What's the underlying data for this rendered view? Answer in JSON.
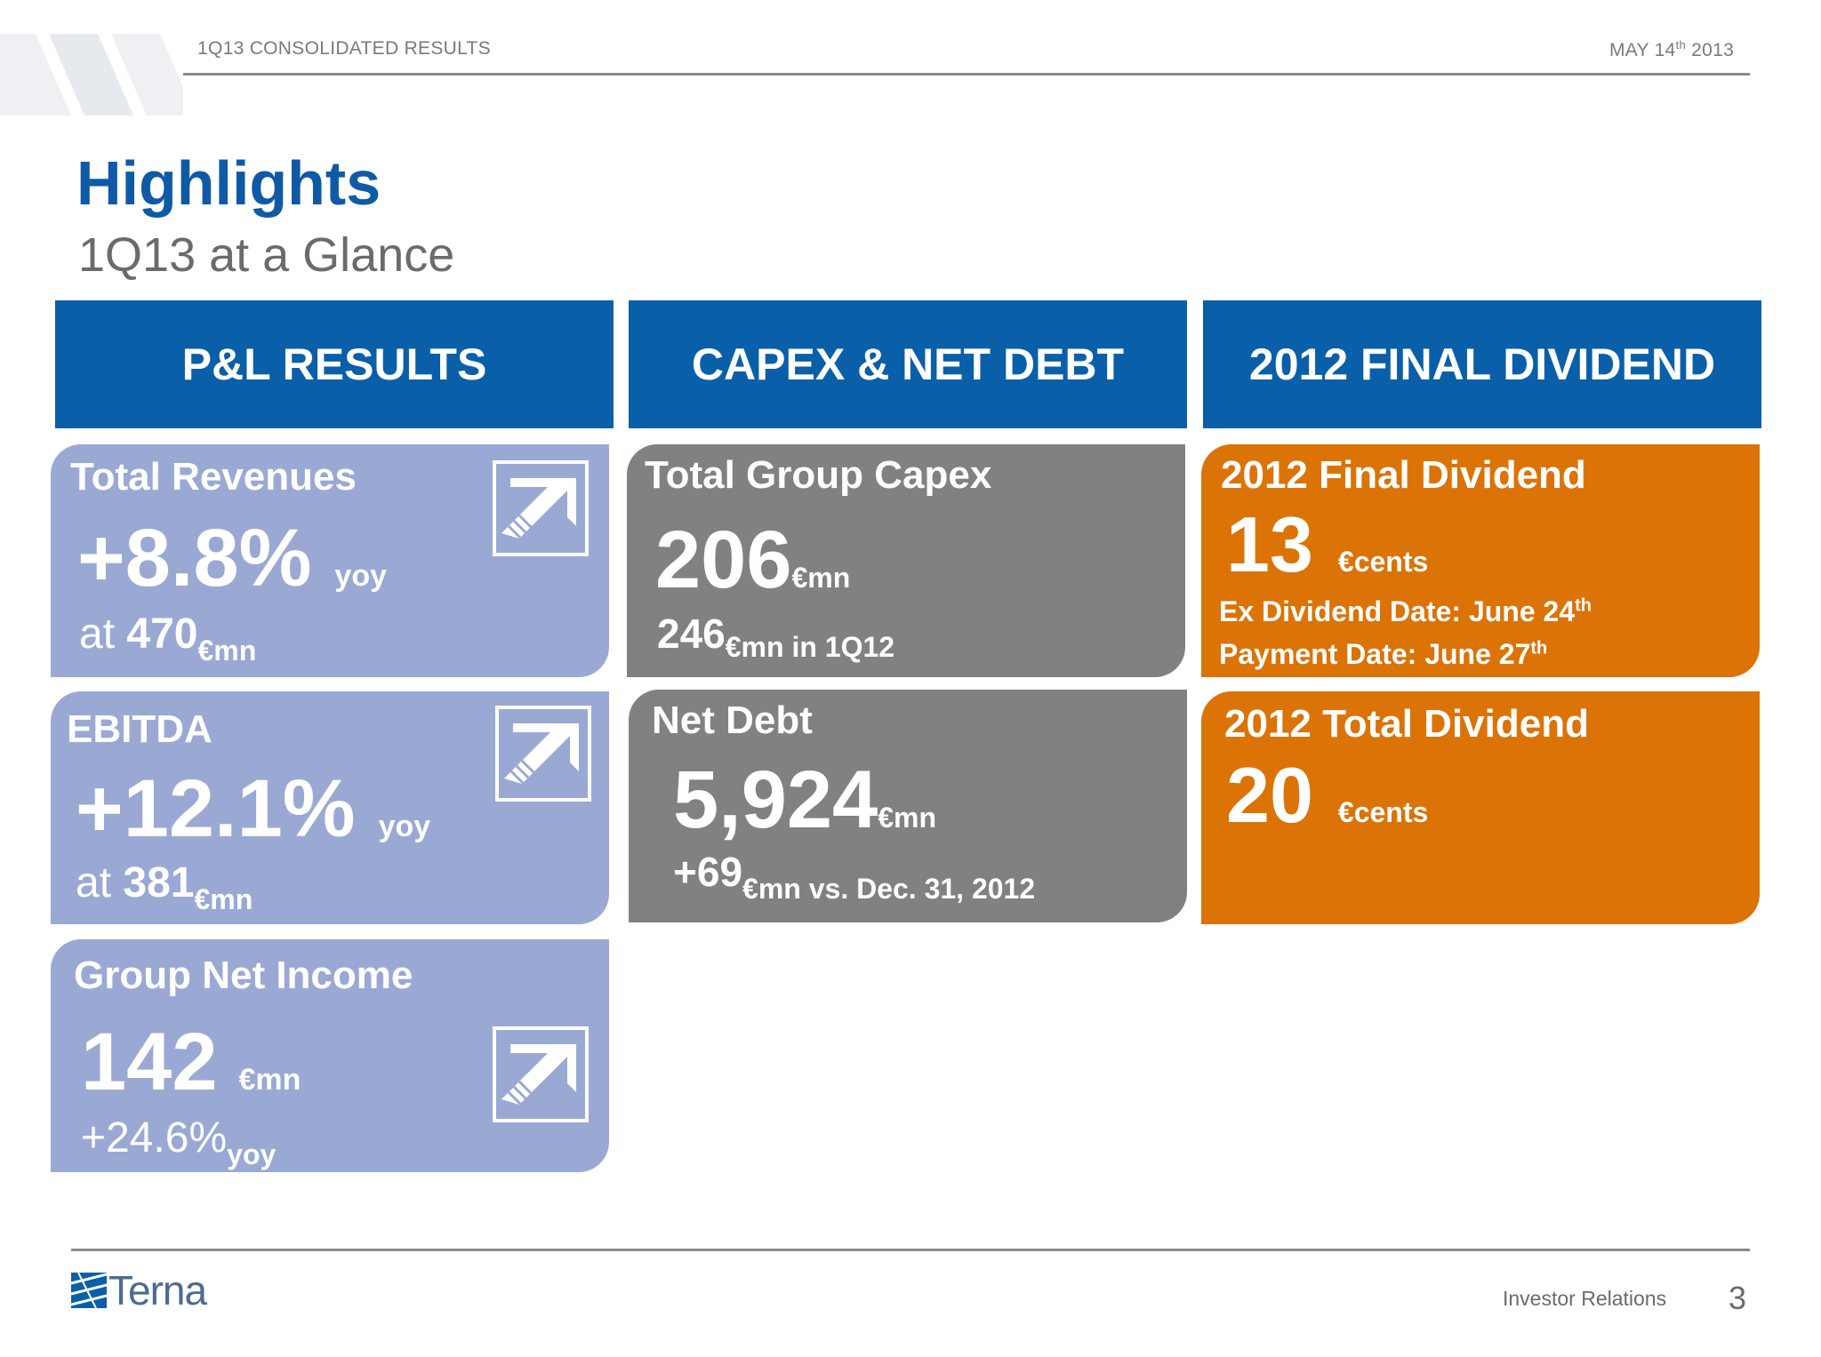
{
  "header": {
    "section": "1Q13 CONSOLIDATED RESULTS",
    "date_prefix": "MAY 14",
    "date_sup": "th",
    "date_year": "2013"
  },
  "page_title": "Highlights",
  "page_subtitle": "1Q13 at a Glance",
  "columns": {
    "pl": {
      "heading": "P&L RESULTS",
      "revenues": {
        "label": "Total Revenues",
        "value": "+8.8%",
        "suffix": "yoy",
        "sub_prefix": "at ",
        "sub_value": "470",
        "sub_unit": "€mn"
      },
      "ebitda": {
        "label": "EBITDA",
        "value": "+12.1%",
        "suffix": "yoy",
        "sub_prefix": "at ",
        "sub_value": "381",
        "sub_unit": "€mn"
      },
      "net_income": {
        "label": "Group Net Income",
        "value": "142",
        "unit": "€mn",
        "sub_value": "+24.6%",
        "sub_unit": "yoy"
      }
    },
    "capex": {
      "heading": "CAPEX & NET DEBT",
      "capex": {
        "label": "Total Group Capex",
        "value": "206",
        "unit": "€mn",
        "sub_value": "246",
        "sub_unit": "€mn in 1Q12"
      },
      "net_debt": {
        "label": "Net Debt",
        "value": "5,924",
        "unit": "€mn",
        "sub_value": "+69",
        "sub_unit": "€mn vs. Dec. 31, 2012"
      }
    },
    "dividend": {
      "heading": "2012 FINAL DIVIDEND",
      "final": {
        "label": "2012 Final Dividend",
        "value": "13",
        "unit": "€cents",
        "ex_date": "Ex Dividend Date: June 24",
        "ex_sup": "th",
        "pay_date": "Payment Date: June 27",
        "pay_sup": "th"
      },
      "total": {
        "label": "2012 Total Dividend",
        "value": "20",
        "unit": "€cents"
      }
    }
  },
  "footer": {
    "logo_text": "Terna",
    "dept": "Investor Relations",
    "page_number": "3"
  },
  "colors": {
    "blue_header": "#0a5fa9",
    "pl_card": "#9aa9d4",
    "capex_card": "#828080",
    "dividend_card": "#dc7307"
  },
  "icons": {
    "trend": "arrow-up-right-icon"
  }
}
